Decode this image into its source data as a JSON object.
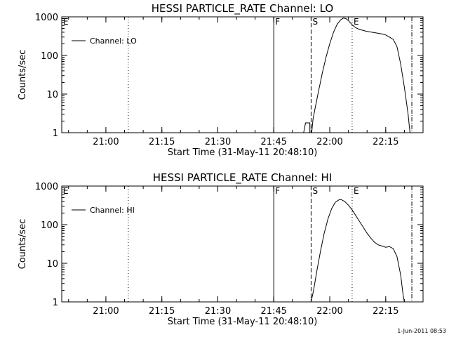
{
  "footer_stamp": "1-Jun-2011 08:53",
  "chart_data": [
    {
      "type": "line",
      "title": "HESSI PARTICLE_RATE Channel: LO",
      "xlabel": "Start Time (31-May-11 20:48:10)",
      "ylabel": "Counts/sec",
      "y_scale": "log",
      "xlim": [
        "20:48:10",
        "22:25"
      ],
      "ylim": [
        1,
        1000
      ],
      "x_ticks": [
        "21:00",
        "21:15",
        "21:30",
        "21:45",
        "22:00",
        "22:15"
      ],
      "y_ticks": [
        "1",
        "10",
        "100",
        "1000"
      ],
      "legend": {
        "position": "top-left",
        "entries": [
          "Channel: LO"
        ]
      },
      "markers": [
        {
          "label": "E",
          "time": "20:48:10",
          "style": "solid"
        },
        {
          "label": "",
          "time": "21:06",
          "style": "dotted"
        },
        {
          "label": "F",
          "time": "21:45",
          "style": "solid"
        },
        {
          "label": "S",
          "time": "21:55",
          "style": "dashed"
        },
        {
          "label": "E",
          "time": "22:06",
          "style": "dotted"
        },
        {
          "label": "",
          "time": "22:22",
          "style": "dash-dot"
        }
      ],
      "series": [
        {
          "name": "Channel: LO",
          "points": [
            [
              "21:53:00",
              1
            ],
            [
              "21:53:30",
              1.8
            ],
            [
              "21:54:40",
              1.8
            ],
            [
              "21:54:40",
              1
            ],
            [
              "21:55:10",
              1
            ],
            [
              "21:55:30",
              2.2
            ],
            [
              "21:56:00",
              4
            ],
            [
              "21:57:00",
              12
            ],
            [
              "21:58:00",
              35
            ],
            [
              "21:59:00",
              90
            ],
            [
              "22:00:00",
              200
            ],
            [
              "22:01:00",
              400
            ],
            [
              "22:02:00",
              650
            ],
            [
              "22:03:00",
              850
            ],
            [
              "22:03:40",
              930
            ],
            [
              "22:04:20",
              900
            ],
            [
              "22:05:00",
              800
            ],
            [
              "22:06:00",
              620
            ],
            [
              "22:07:00",
              520
            ],
            [
              "22:08:00",
              470
            ],
            [
              "22:10:00",
              420
            ],
            [
              "22:12:00",
              390
            ],
            [
              "22:14:00",
              360
            ],
            [
              "22:15:00",
              340
            ],
            [
              "22:16:00",
              300
            ],
            [
              "22:17:00",
              260
            ],
            [
              "22:18:00",
              170
            ],
            [
              "22:19:00",
              60
            ],
            [
              "22:20:00",
              15
            ],
            [
              "22:21:00",
              3
            ],
            [
              "22:21:30",
              1
            ]
          ]
        }
      ]
    },
    {
      "type": "line",
      "title": "HESSI PARTICLE_RATE Channel: HI",
      "xlabel": "Start Time (31-May-11 20:48:10)",
      "ylabel": "Counts/sec",
      "y_scale": "log",
      "xlim": [
        "20:48:10",
        "22:25"
      ],
      "ylim": [
        1,
        1000
      ],
      "x_ticks": [
        "21:00",
        "21:15",
        "21:30",
        "21:45",
        "22:00",
        "22:15"
      ],
      "y_ticks": [
        "1",
        "10",
        "100",
        "1000"
      ],
      "legend": {
        "position": "top-left",
        "entries": [
          "Channel: HI"
        ]
      },
      "markers": [
        {
          "label": "E",
          "time": "20:48:10",
          "style": "solid"
        },
        {
          "label": "",
          "time": "21:06",
          "style": "dotted"
        },
        {
          "label": "F",
          "time": "21:45",
          "style": "solid"
        },
        {
          "label": "S",
          "time": "21:55",
          "style": "dashed"
        },
        {
          "label": "E",
          "time": "22:06",
          "style": "dotted"
        },
        {
          "label": "",
          "time": "22:22",
          "style": "dash-dot"
        }
      ],
      "series": [
        {
          "name": "Channel: HI",
          "points": [
            [
              "21:55:00",
              1
            ],
            [
              "21:55:40",
              2
            ],
            [
              "21:56:30",
              6
            ],
            [
              "21:57:30",
              20
            ],
            [
              "21:58:30",
              60
            ],
            [
              "21:59:30",
              140
            ],
            [
              "22:00:30",
              260
            ],
            [
              "22:01:30",
              380
            ],
            [
              "22:02:30",
              440
            ],
            [
              "22:03:00",
              450
            ],
            [
              "22:04:00",
              400
            ],
            [
              "22:05:00",
              320
            ],
            [
              "22:06:00",
              240
            ],
            [
              "22:07:00",
              170
            ],
            [
              "22:08:00",
              120
            ],
            [
              "22:09:00",
              85
            ],
            [
              "22:10:00",
              60
            ],
            [
              "22:11:00",
              45
            ],
            [
              "22:12:00",
              35
            ],
            [
              "22:13:00",
              30
            ],
            [
              "22:14:00",
              28
            ],
            [
              "22:15:00",
              26
            ],
            [
              "22:16:00",
              27
            ],
            [
              "22:17:00",
              24
            ],
            [
              "22:18:00",
              15
            ],
            [
              "22:19:00",
              5
            ],
            [
              "22:19:40",
              1.5
            ],
            [
              "22:20:00",
              1
            ]
          ]
        }
      ]
    }
  ]
}
